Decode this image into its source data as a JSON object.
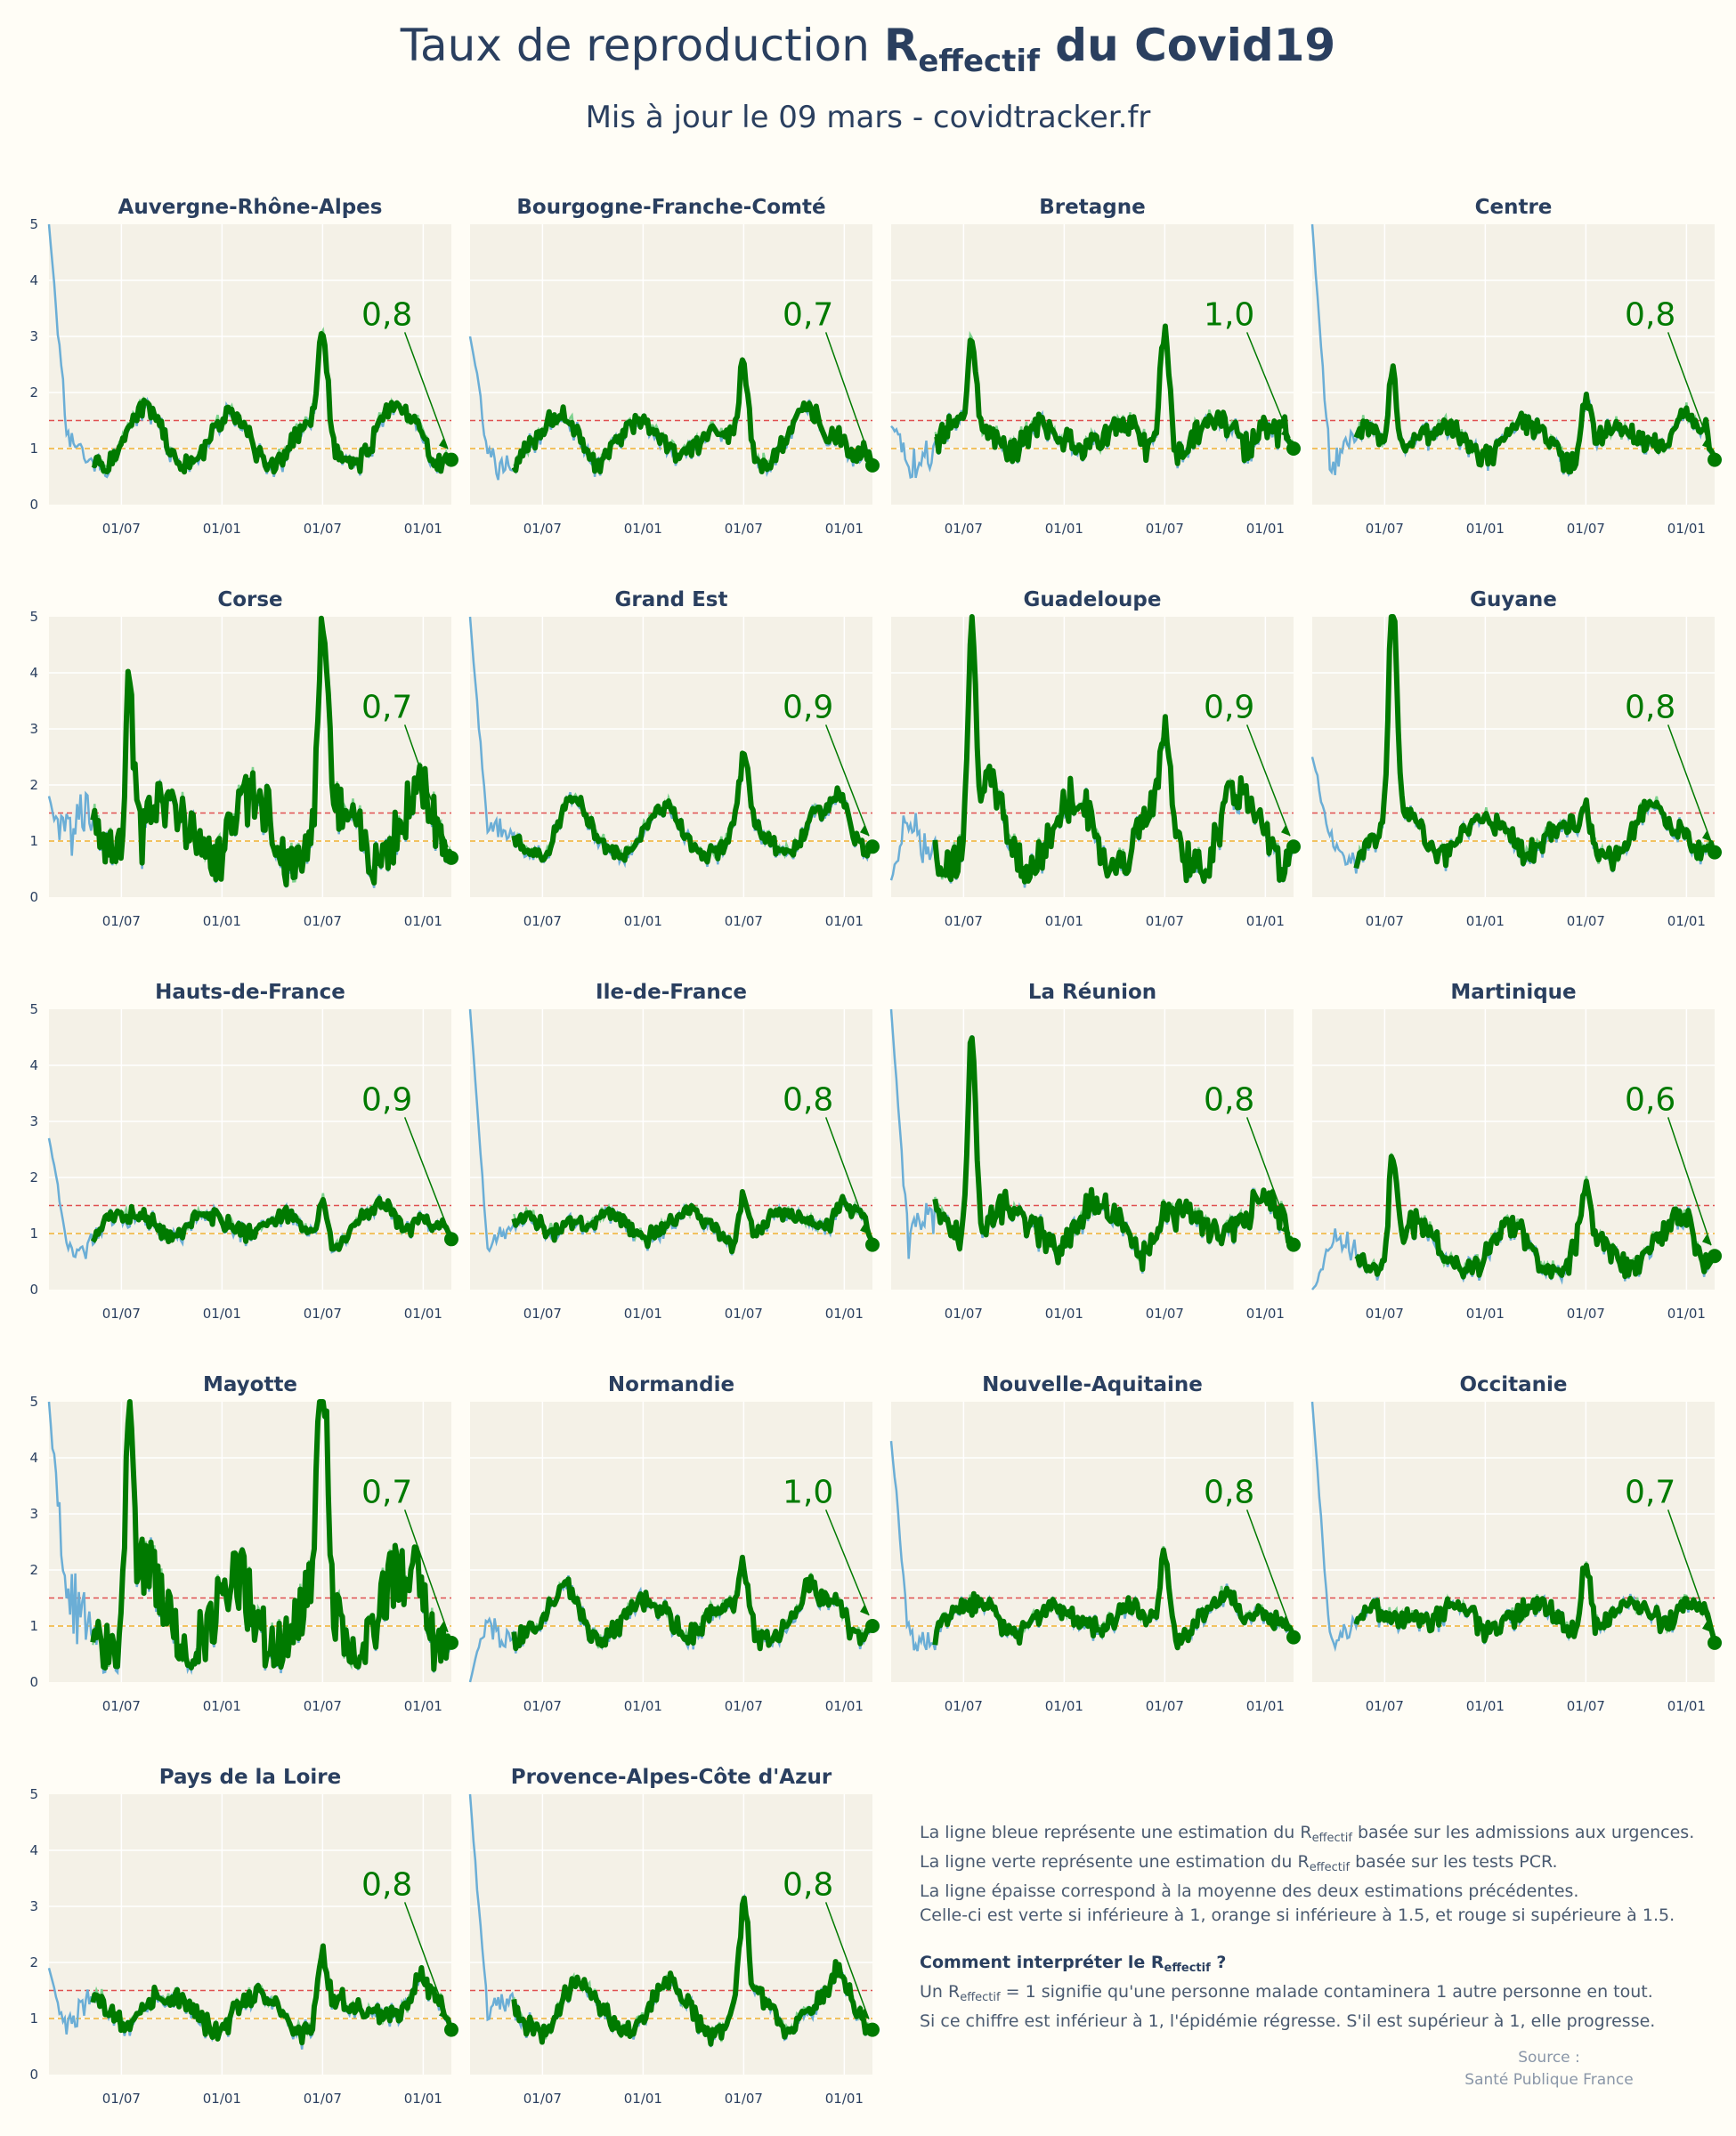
{
  "page": {
    "title_pre": "Taux de reproduction ",
    "title_R": "R",
    "title_sub": "effectif",
    "title_post": " du Covid19",
    "subtitle": "Mis à jour le 09 mars - covidtracker.fr"
  },
  "notes": {
    "line1_a": "La ligne bleue représente une estimation du R",
    "line1_sub": "effectif",
    "line1_b": " basée sur les admissions aux urgences.",
    "line2_a": "La ligne verte représente une estimation du R",
    "line2_sub": "effectif",
    "line2_b": " basée sur les tests PCR.",
    "line3": "La ligne épaisse correspond à la moyenne des deux estimations précédentes.",
    "line4": "Celle-ci est verte si inférieure à 1, orange si inférieure à 1.5, et rouge si supérieure à 1.5.",
    "q_a": "Comment interpréter le R",
    "q_sub": "effectif",
    "q_b": " ?",
    "a1_a": "Un R",
    "a1_sub": "effectif",
    "a1_b": " = 1 signifie qu'une personne malade contaminera 1 autre personne en tout.",
    "a2": "Si ce chiffre est inférieur à 1, l'épidémie régresse. S'il est supérieur à 1, elle progresse."
  },
  "source": {
    "label": "Source :",
    "name": "Santé Publique France"
  },
  "colors": {
    "background": "#fffdf6",
    "plot_bg": "#f4f1e7",
    "blue": "#6baed6",
    "light_green": "#7ed28e",
    "thick_green": "#007a00",
    "red_threshold": "#e05050",
    "orange_threshold": "#f0b030"
  },
  "chart_data": {
    "type": "line",
    "x_tick_labels": [
      "01/07",
      "01/01",
      "01/07",
      "01/01"
    ],
    "y_tick_labels": [
      "0",
      "1",
      "2",
      "3",
      "4",
      "5"
    ],
    "ylim": [
      0,
      5
    ],
    "thresholds": [
      1,
      1.5
    ],
    "regions": [
      {
        "name": "Auvergne-Rhône-Alpes",
        "latest": "0,8",
        "peak2": 2.9,
        "base": 1.0,
        "amp": 0.35,
        "noise": 0.15,
        "start_blue": 5.0,
        "spike1": 0,
        "seed": 1
      },
      {
        "name": "Bourgogne-Franche-Comté",
        "latest": "0,7",
        "peak2": 2.6,
        "base": 1.0,
        "amp": 0.35,
        "noise": 0.15,
        "start_blue": 3.0,
        "spike1": 0,
        "seed": 2
      },
      {
        "name": "Bretagne",
        "latest": "1,0",
        "peak2": 3.4,
        "base": 1.05,
        "amp": 0.35,
        "noise": 0.2,
        "start_blue": 1.4,
        "spike1": 2.9,
        "seed": 3
      },
      {
        "name": "Centre",
        "latest": "0,8",
        "peak2": 2.1,
        "base": 1.0,
        "amp": 0.35,
        "noise": 0.15,
        "start_blue": 5.0,
        "spike1": 2.4,
        "seed": 4
      },
      {
        "name": "Corse",
        "latest": "0,7",
        "peak2": 5.0,
        "base": 1.0,
        "amp": 0.5,
        "noise": 0.5,
        "start_blue": 1.8,
        "spike1": 4.2,
        "seed": 5
      },
      {
        "name": "Grand Est",
        "latest": "0,9",
        "peak2": 2.2,
        "base": 1.0,
        "amp": 0.3,
        "noise": 0.1,
        "start_blue": 5.0,
        "spike1": 0,
        "seed": 6
      },
      {
        "name": "Guadeloupe",
        "latest": "0,9",
        "peak2": 2.8,
        "base": 1.0,
        "amp": 0.5,
        "noise": 0.35,
        "start_blue": 0.3,
        "spike1": 4.5,
        "seed": 7
      },
      {
        "name": "Guyane",
        "latest": "0,8",
        "peak2": 1.7,
        "base": 0.95,
        "amp": 0.3,
        "noise": 0.15,
        "start_blue": 2.5,
        "spike1": 5.0,
        "seed": 8
      },
      {
        "name": "Hauts-de-France",
        "latest": "0,9",
        "peak2": 1.8,
        "base": 1.0,
        "amp": 0.3,
        "noise": 0.1,
        "start_blue": 2.7,
        "spike1": 0,
        "seed": 9
      },
      {
        "name": "Ile-de-France",
        "latest": "0,8",
        "peak2": 1.9,
        "base": 1.0,
        "amp": 0.3,
        "noise": 0.1,
        "start_blue": 5.0,
        "spike1": 0,
        "seed": 10
      },
      {
        "name": "La Réunion",
        "latest": "0,8",
        "peak2": 1.4,
        "base": 1.0,
        "amp": 0.35,
        "noise": 0.25,
        "start_blue": 5.0,
        "spike1": 4.7,
        "seed": 11
      },
      {
        "name": "Martinique",
        "latest": "0,6",
        "peak2": 1.6,
        "base": 0.55,
        "amp": 0.3,
        "noise": 0.2,
        "start_blue": 0.0,
        "spike1": 2.5,
        "seed": 12
      },
      {
        "name": "Mayotte",
        "latest": "0,7",
        "peak2": 5.0,
        "base": 1.0,
        "amp": 0.6,
        "noise": 0.6,
        "start_blue": 5.0,
        "spike1": 5.0,
        "seed": 13
      },
      {
        "name": "Normandie",
        "latest": "1,0",
        "peak2": 2.0,
        "base": 1.0,
        "amp": 0.3,
        "noise": 0.15,
        "start_blue": 0,
        "spike1": 0,
        "seed": 14
      },
      {
        "name": "Nouvelle-Aquitaine",
        "latest": "0,8",
        "peak2": 2.5,
        "base": 1.0,
        "amp": 0.3,
        "noise": 0.15,
        "start_blue": 4.3,
        "spike1": 0,
        "seed": 15
      },
      {
        "name": "Occitanie",
        "latest": "0,7",
        "peak2": 2.4,
        "base": 1.0,
        "amp": 0.3,
        "noise": 0.15,
        "start_blue": 5.0,
        "spike1": 0,
        "seed": 16
      },
      {
        "name": "Pays de la Loire",
        "latest": "0,8",
        "peak2": 2.2,
        "base": 1.0,
        "amp": 0.3,
        "noise": 0.15,
        "start_blue": 1.9,
        "spike1": 0,
        "seed": 17
      },
      {
        "name": "Provence-Alpes-Côte d'Azur",
        "latest": "0,8",
        "peak2": 2.8,
        "base": 1.0,
        "amp": 0.3,
        "noise": 0.15,
        "start_blue": 5.0,
        "spike1": 0,
        "seed": 18
      }
    ]
  }
}
